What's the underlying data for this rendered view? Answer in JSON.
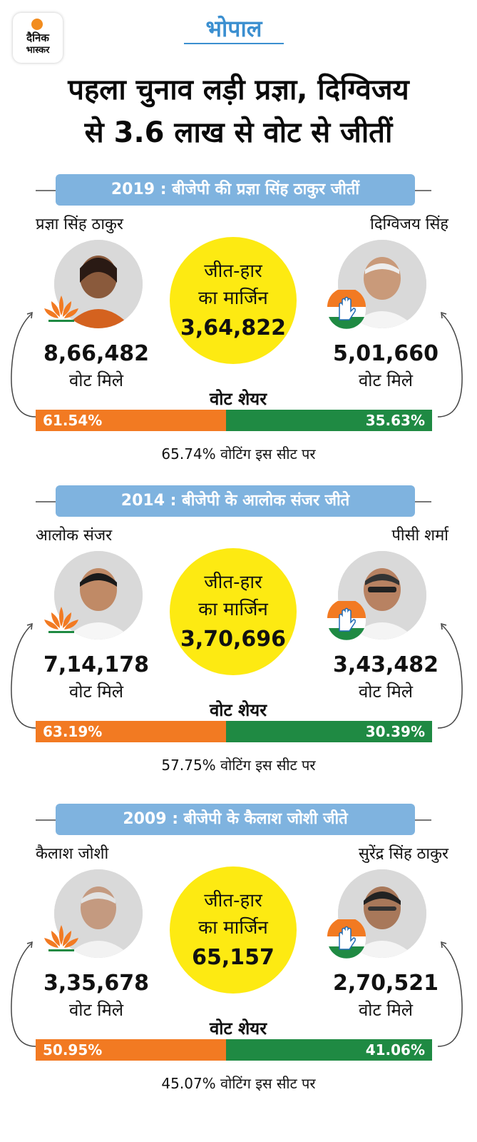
{
  "brand": {
    "line1": "दैनिक",
    "line2": "भास्कर"
  },
  "city": "भोपाल",
  "headline": {
    "line1": "पहला चुनाव लड़ी प्रज्ञा, दिग्विजय",
    "line2": "से 3.6 लाख से वोट से जीतीं"
  },
  "labels": {
    "margin_line1": "जीत-हार",
    "margin_line2": "का मार्जिन",
    "votes_received": "वोट मिले",
    "vote_share": "वोट शेयर"
  },
  "elections": [
    {
      "title": "2019 : बीजेपी की प्रज्ञा सिंह ठाकुर जीतीं",
      "bjp": {
        "name": "प्रज्ञा सिंह ठाकुर",
        "votes": "8,66,482",
        "share": "61.54%"
      },
      "inc": {
        "name": "दिग्विजय सिंह",
        "votes": "5,01,660",
        "share": "35.63%"
      },
      "margin": "3,64,822",
      "turnout": "65.74% वोटिंग इस सीट पर",
      "bjp_share_pct": 61.54
    },
    {
      "title": "2014 : बीजेपी के आलोक संजर जीते",
      "bjp": {
        "name": "आलोक संजर",
        "votes": "7,14,178",
        "share": "63.19%"
      },
      "inc": {
        "name": "पीसी शर्मा",
        "votes": "3,43,482",
        "share": "30.39%"
      },
      "margin": "3,70,696",
      "turnout": "57.75% वोटिंग इस सीट पर",
      "bjp_share_pct": 63.19
    },
    {
      "title": "2009 : बीजेपी के कैलाश जोशी जीते",
      "bjp": {
        "name": "कैलाश जोशी",
        "votes": "3,35,678",
        "share": "50.95%"
      },
      "inc": {
        "name": "सुरेंद्र सिंह ठाकुर",
        "votes": "2,70,521",
        "share": "41.06%"
      },
      "margin": "65,157",
      "turnout": "45.07% वोटिंग इस सीट पर",
      "bjp_share_pct": 50.95
    }
  ],
  "colors": {
    "bjp_orange": "#f27a22",
    "inc_green": "#1f8a43",
    "banner_blue": "#7fb3df",
    "margin_yellow": "#fdea12",
    "city_blue": "#3b8fd0"
  }
}
